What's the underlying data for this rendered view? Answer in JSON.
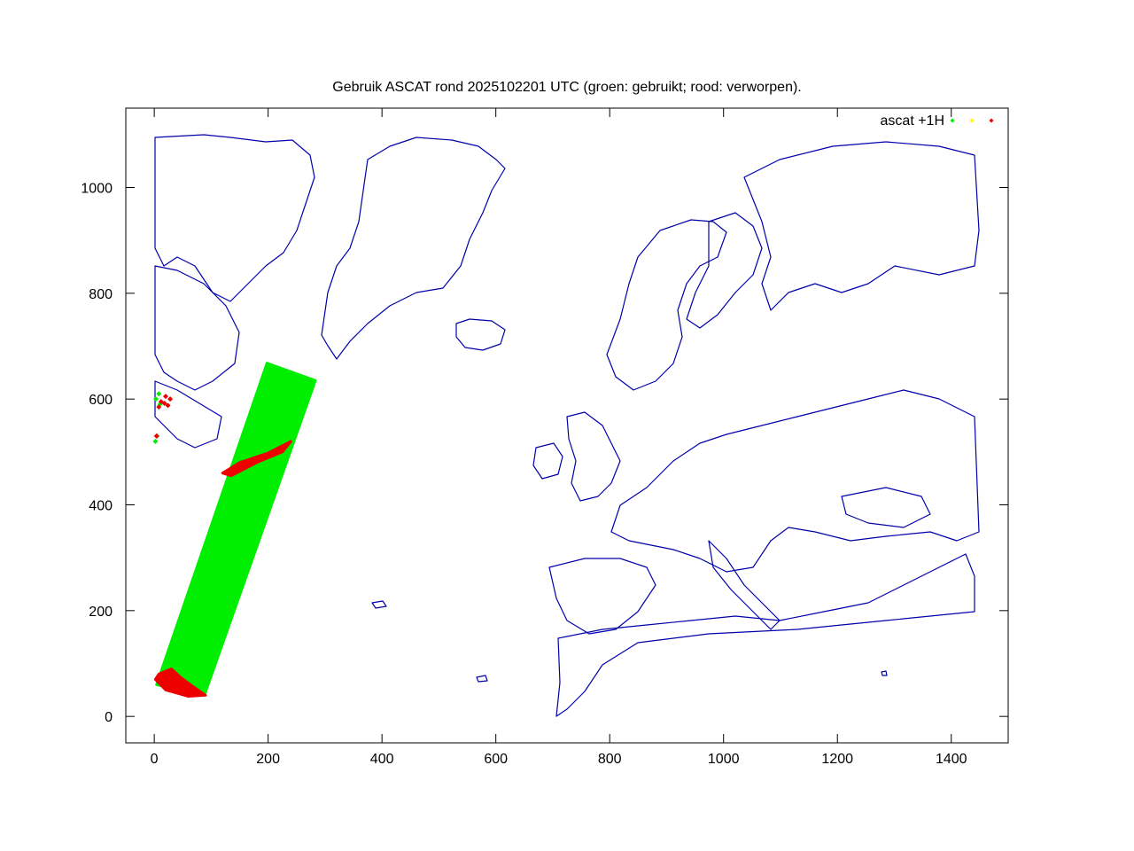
{
  "chart_data": {
    "type": "scatter",
    "title": "Gebruik ASCAT rond 2025102201 UTC (groen: gebruikt; rood: verworpen).",
    "xlabel": "",
    "ylabel": "",
    "xlim": [
      -50,
      1500
    ],
    "ylim": [
      -50,
      1150
    ],
    "xticks": [
      0,
      200,
      400,
      600,
      800,
      1000,
      1200,
      1400
    ],
    "yticks": [
      0,
      200,
      400,
      600,
      800,
      1000
    ],
    "grid": false,
    "legend_position": "top-right",
    "legend_label": "ascat +1H",
    "series": [
      {
        "name": "ascat +1H (used)",
        "color": "#00ee00",
        "regions": [
          {
            "kind": "swath",
            "polygon": [
              [
                4,
                60
              ],
              [
                88,
                40
              ],
              [
                283,
                635
              ],
              [
                198,
                668
              ]
            ]
          },
          {
            "kind": "points",
            "points": [
              [
                3,
                600
              ],
              [
                8,
                610
              ],
              [
                5,
                530
              ],
              [
                2,
                520
              ],
              [
                10,
                590
              ]
            ]
          }
        ]
      },
      {
        "name": "ascat +1H (unused)",
        "color": "#ffff00",
        "regions": []
      },
      {
        "name": "ascat +1H (rejected)",
        "color": "#ee0000",
        "regions": [
          {
            "kind": "band",
            "polygon": [
              [
                120,
                460
              ],
              [
                150,
                480
              ],
              [
                200,
                498
              ],
              [
                240,
                520
              ],
              [
                225,
                500
              ],
              [
                180,
                480
              ],
              [
                135,
                455
              ]
            ]
          },
          {
            "kind": "band",
            "polygon": [
              [
                2,
                70
              ],
              [
                20,
                50
              ],
              [
                60,
                38
              ],
              [
                90,
                40
              ],
              [
                70,
                55
              ],
              [
                45,
                75
              ],
              [
                30,
                90
              ],
              [
                8,
                80
              ]
            ]
          },
          {
            "kind": "points",
            "points": [
              [
                12,
                595
              ],
              [
                18,
                592
              ],
              [
                24,
                588
              ],
              [
                28,
                600
              ],
              [
                8,
                585
              ],
              [
                4,
                530
              ],
              [
                20,
                605
              ]
            ]
          }
        ]
      }
    ],
    "background": {
      "name": "coastlines",
      "color": "#0000aa"
    }
  }
}
